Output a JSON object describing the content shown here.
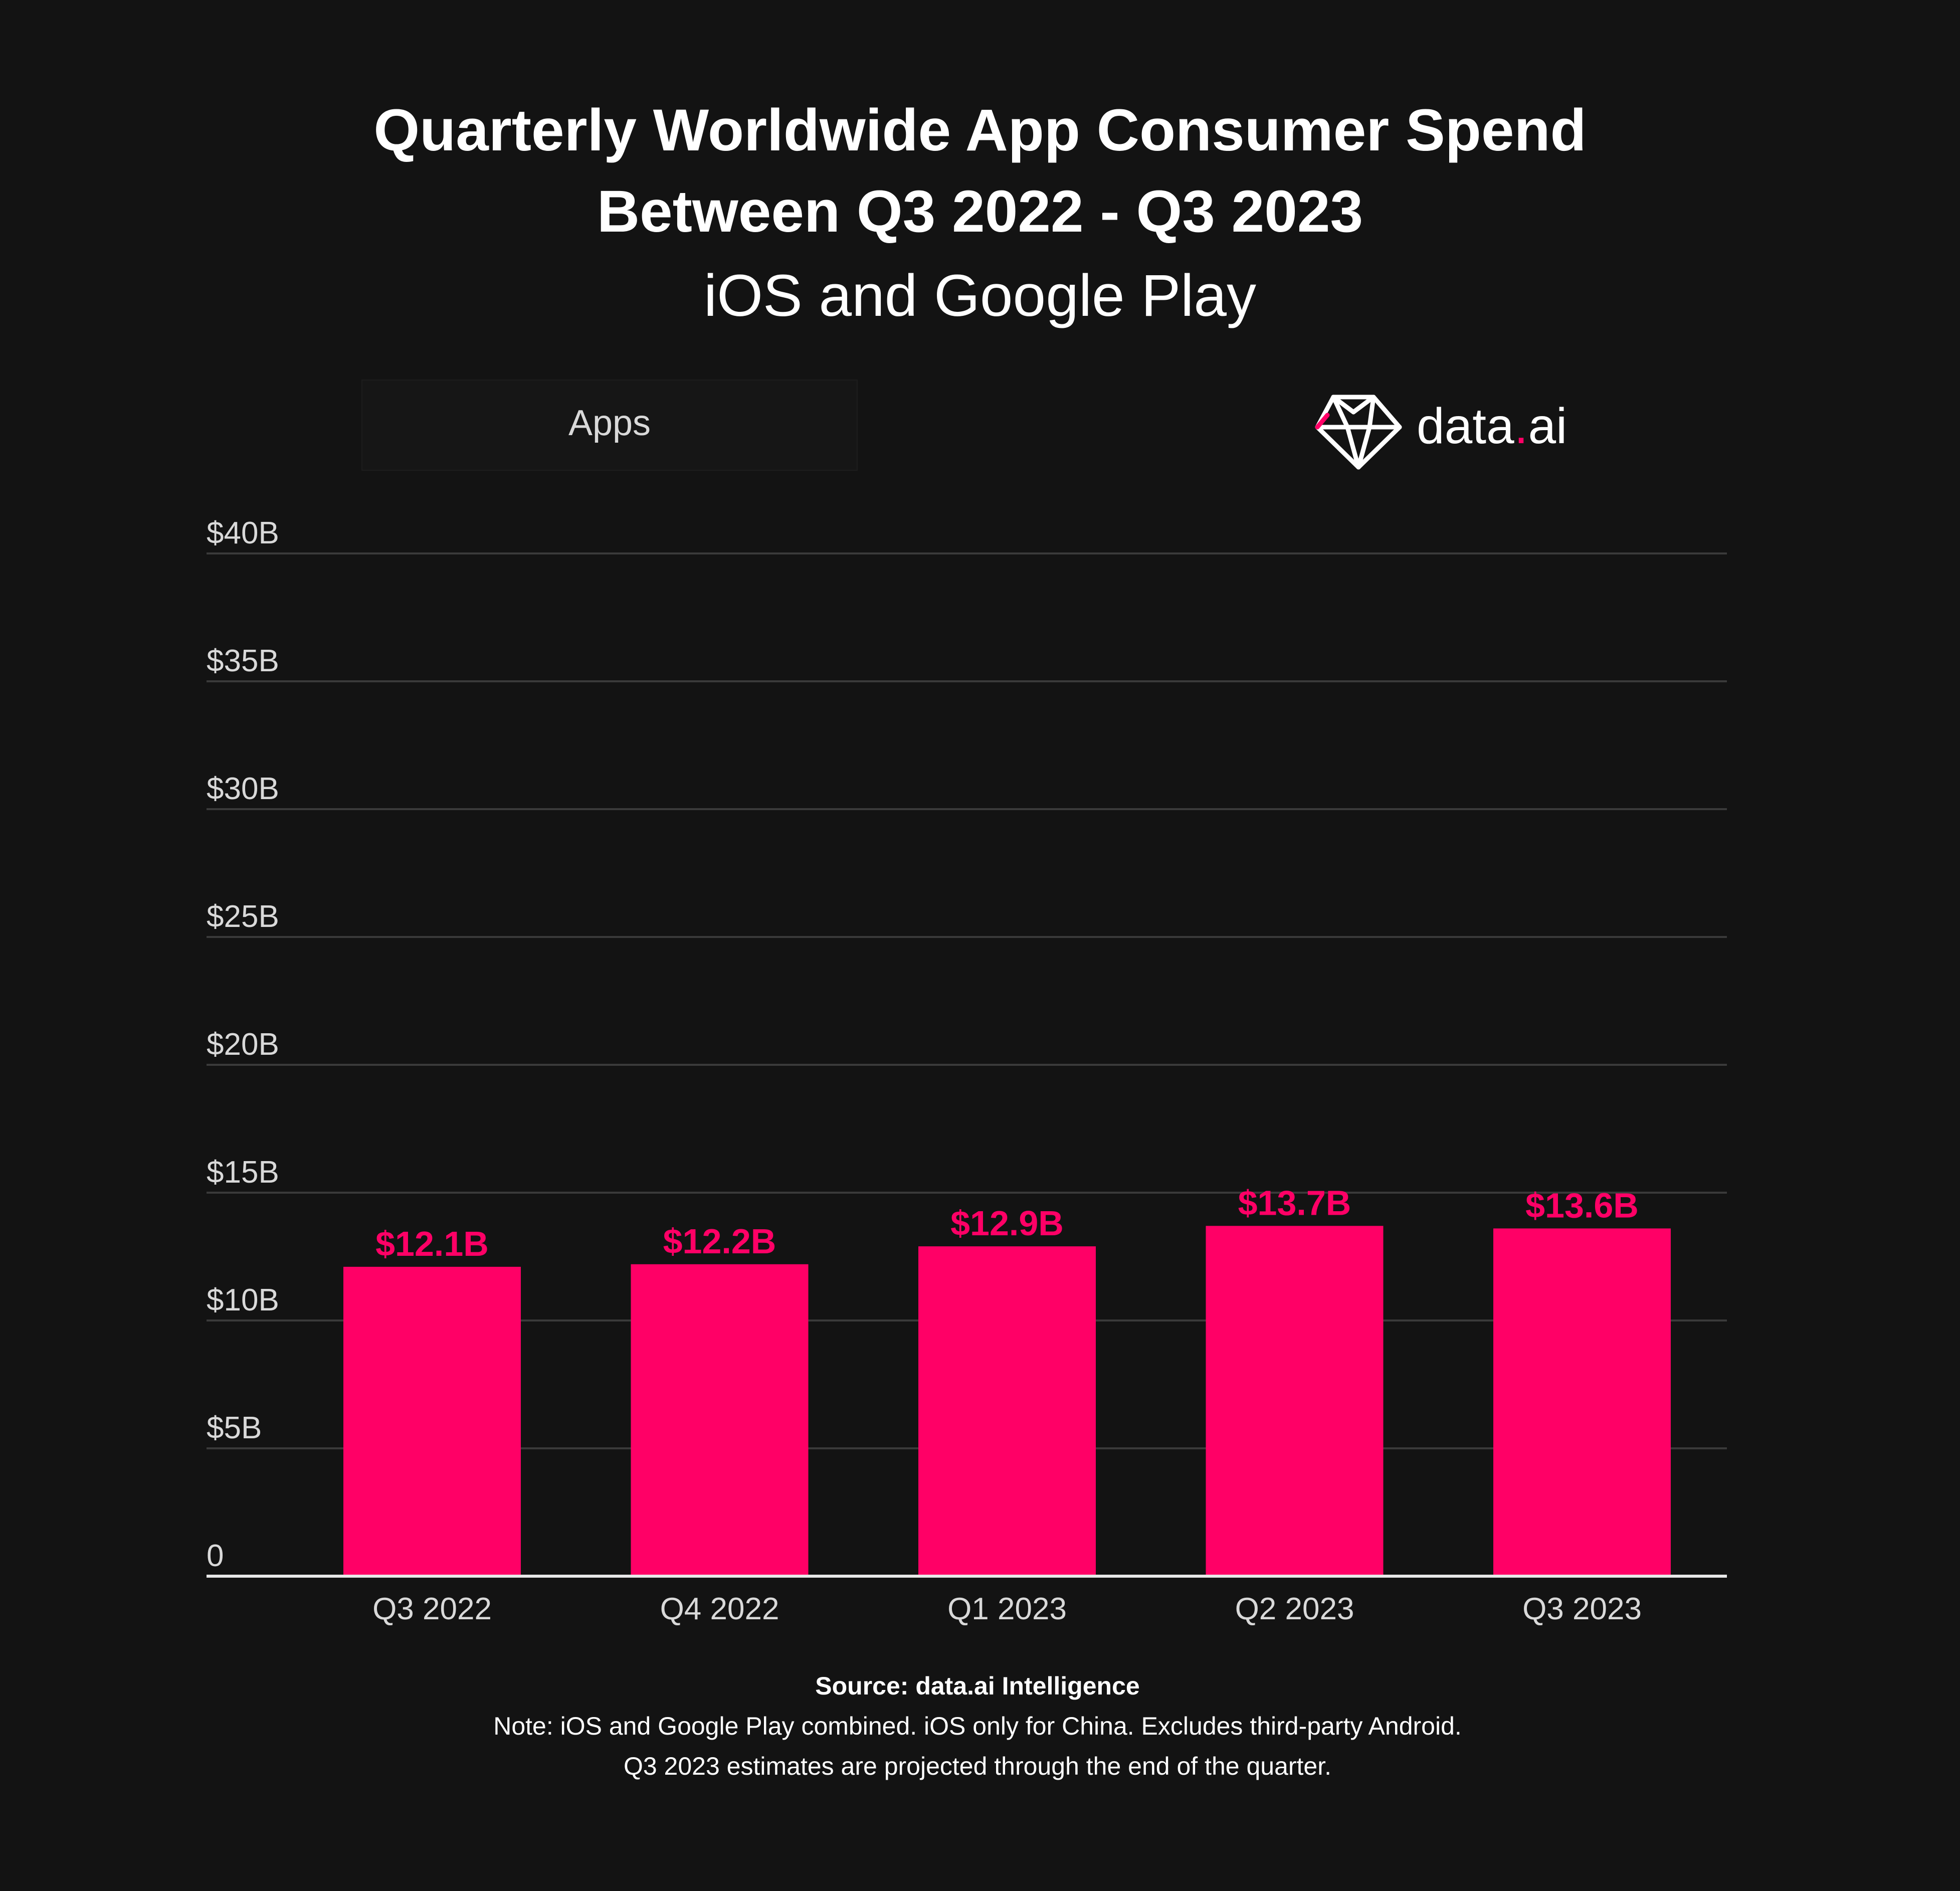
{
  "title_line1": "Quarterly Worldwide App Consumer Spend",
  "title_line2": "Between Q3 2022 - Q3 2023",
  "subtitle": "iOS and Google Play",
  "tab_label": "Apps",
  "logo": {
    "text_before": "data",
    "dot": ".",
    "text_after": "ai",
    "icon": "diamond-icon",
    "dot_color": "#ff0066"
  },
  "colors": {
    "background": "#131313",
    "bar": "#ff0066",
    "label": "#ff0066",
    "grid": "#3a3a3a",
    "baseline": "#e8e8e8",
    "text": "#ffffff",
    "axis_text": "#d9d9d9"
  },
  "chart_data": {
    "type": "bar",
    "title": "Quarterly Worldwide App Consumer Spend Between Q3 2022 - Q3 2023",
    "subtitle": "iOS and Google Play",
    "xlabel": "",
    "ylabel": "",
    "categories": [
      "Q3 2022",
      "Q4 2022",
      "Q1 2023",
      "Q2 2023",
      "Q3 2023"
    ],
    "values": [
      12.1,
      12.2,
      12.9,
      13.7,
      13.6
    ],
    "data_labels": [
      "$12.1B",
      "$12.2B",
      "$12.9B",
      "$13.7B",
      "$13.6B"
    ],
    "ylim": [
      0,
      40
    ],
    "y_ticks": [
      0,
      5,
      10,
      15,
      20,
      25,
      30,
      35,
      40
    ],
    "y_tick_labels": [
      "0",
      "$5B",
      "$10B",
      "$15B",
      "$20B",
      "$25B",
      "$30B",
      "$35B",
      "$40B"
    ],
    "grid": true
  },
  "footer": {
    "source": "Source: data.ai Intelligence",
    "note_line1": "Note: iOS and Google Play combined. iOS only for China. Excludes third-party Android.",
    "note_line2": "Q3 2023 estimates are projected through the end of the quarter."
  }
}
